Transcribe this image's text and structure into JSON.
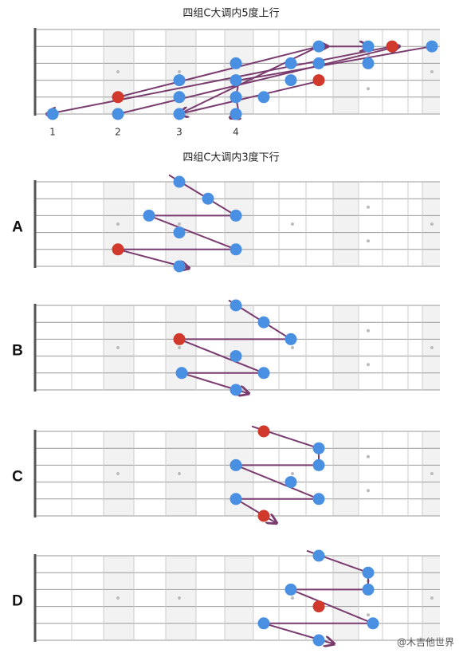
{
  "titles": [
    "四组C大调内5度上行",
    "四组C大调内3度下行"
  ],
  "position_labels": [
    "1",
    "2",
    "3",
    "4"
  ],
  "board_labels": [
    "A",
    "B",
    "C",
    "D"
  ],
  "watermark": "@木吉他世界"
}
